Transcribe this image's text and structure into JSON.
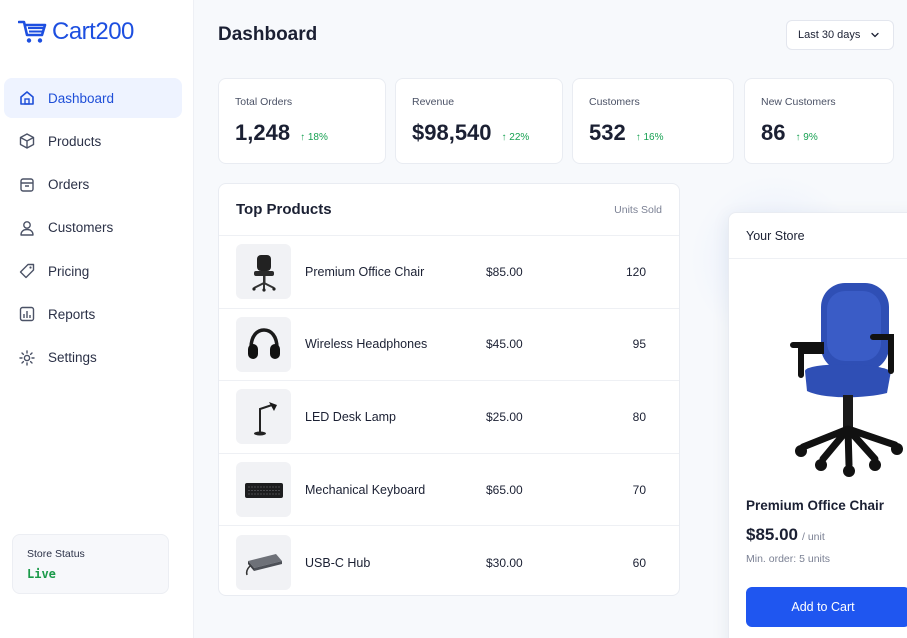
{
  "brand": {
    "name": "Cart200",
    "accent": "#1f56f0"
  },
  "sidebar": {
    "items": [
      {
        "label": "Dashboard",
        "icon": "home-icon",
        "active": true
      },
      {
        "label": "Products",
        "icon": "box-icon",
        "active": false
      },
      {
        "label": "Orders",
        "icon": "orders-icon",
        "active": false
      },
      {
        "label": "Customers",
        "icon": "user-icon",
        "active": false
      },
      {
        "label": "Pricing",
        "icon": "tag-icon",
        "active": false
      },
      {
        "label": "Reports",
        "icon": "chart-icon",
        "active": false
      },
      {
        "label": "Settings",
        "icon": "gear-icon",
        "active": false
      }
    ],
    "status": {
      "label": "Store Status",
      "value": "Live",
      "color": "#1b9a4a"
    }
  },
  "header": {
    "title": "Dashboard",
    "range": {
      "selected": "Last 30 days"
    }
  },
  "stats": [
    {
      "label": "Total Orders",
      "value": "1,248",
      "change": "↑ 18%"
    },
    {
      "label": "Revenue",
      "value": "$98,540",
      "change": "↑ 22%"
    },
    {
      "label": "Customers",
      "value": "532",
      "change": "↑ 16%"
    },
    {
      "label": "New Customers",
      "value": "86",
      "change": "↑ 9%"
    }
  ],
  "top_products": {
    "title": "Top Products",
    "column": "Units Sold",
    "rows": [
      {
        "name": "Premium Office Chair",
        "price": "$85.00",
        "units": "120",
        "icon": "office-chair-icon"
      },
      {
        "name": "Wireless Headphones",
        "price": "$45.00",
        "units": "95",
        "icon": "headphones-icon"
      },
      {
        "name": "LED Desk Lamp",
        "price": "$25.00",
        "units": "80",
        "icon": "desk-lamp-icon"
      },
      {
        "name": "Mechanical Keyboard",
        "price": "$65.00",
        "units": "70",
        "icon": "keyboard-icon"
      },
      {
        "name": "USB-C Hub",
        "price": "$30.00",
        "units": "60",
        "icon": "usb-hub-icon"
      }
    ]
  },
  "store": {
    "title": "Your Store",
    "product_name": "Premium Office Chair",
    "price": "$85.00",
    "unit": "/ unit",
    "min_order": "Min. order: 5 units",
    "button": "Add to Cart",
    "chair_color": "#2f4fb5"
  }
}
